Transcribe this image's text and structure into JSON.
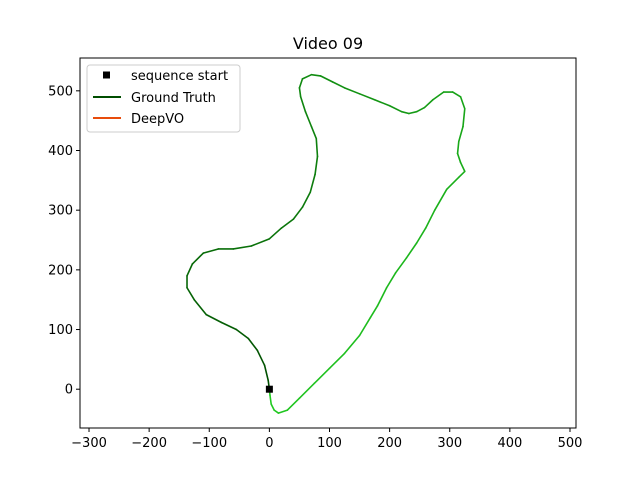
{
  "chart_data": {
    "type": "line",
    "title": "Video 09",
    "xlabel": "",
    "ylabel": "",
    "xlim": [
      -315,
      510
    ],
    "ylim": [
      -65,
      555
    ],
    "xticks": [
      -300,
      -200,
      -100,
      0,
      100,
      200,
      300,
      400,
      500
    ],
    "yticks": [
      0,
      100,
      200,
      300,
      400,
      500
    ],
    "grid": false,
    "legend": {
      "placement": "upper-left"
    },
    "start_marker": {
      "name": "sequence start",
      "x": 0,
      "y": 0,
      "color": "#000000"
    },
    "series": [
      {
        "name": "Ground Truth",
        "color": "#004d00",
        "gradient_end_color": "#22cc22",
        "x": [
          0,
          -2,
          -8,
          -20,
          -35,
          -55,
          -80,
          -105,
          -125,
          -137,
          -137,
          -128,
          -110,
          -85,
          -60,
          -30,
          0,
          20,
          40,
          55,
          68,
          76,
          80,
          78,
          70,
          60,
          52,
          50,
          55,
          70,
          85,
          105,
          125,
          150,
          175,
          200,
          220,
          232,
          245,
          258,
          272,
          290,
          305,
          318,
          325,
          322,
          315,
          313,
          318,
          325,
          315,
          295,
          275,
          260,
          245,
          228,
          210,
          195,
          180,
          168,
          150,
          125,
          100,
          75,
          50,
          30,
          15,
          8,
          3,
          1,
          0
        ],
        "y": [
          0,
          15,
          40,
          65,
          85,
          100,
          112,
          125,
          150,
          170,
          190,
          210,
          228,
          235,
          235,
          240,
          252,
          270,
          285,
          305,
          330,
          360,
          390,
          420,
          440,
          465,
          490,
          505,
          520,
          527,
          525,
          515,
          505,
          495,
          485,
          475,
          465,
          462,
          465,
          472,
          485,
          498,
          498,
          490,
          470,
          440,
          415,
          395,
          380,
          365,
          355,
          335,
          300,
          270,
          245,
          220,
          195,
          170,
          140,
          120,
          90,
          60,
          35,
          10,
          -15,
          -35,
          -40,
          -35,
          -25,
          -10,
          0
        ]
      },
      {
        "name": "DeepVO",
        "color": "#e84c0c",
        "x": [],
        "y": []
      }
    ]
  }
}
